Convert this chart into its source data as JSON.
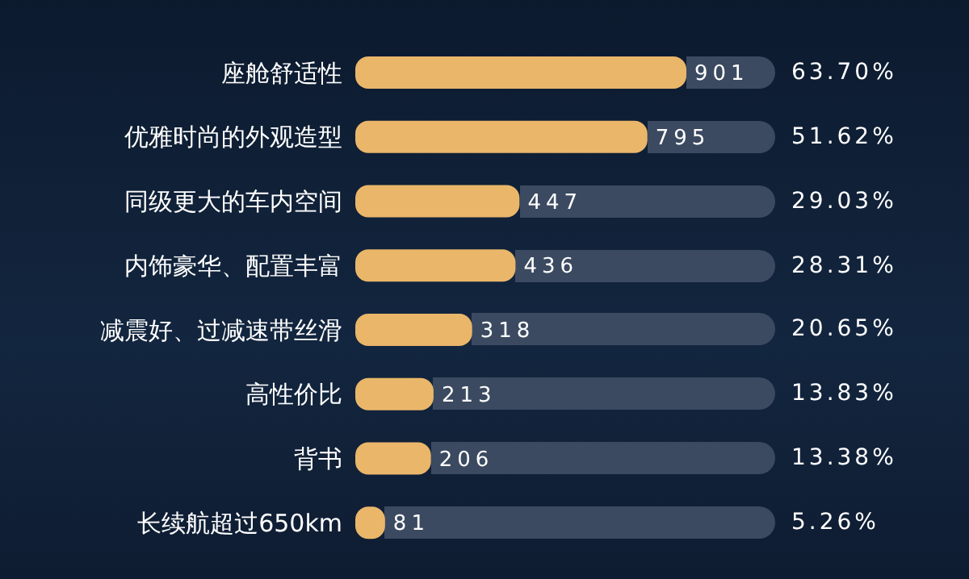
{
  "chart_data": {
    "type": "bar",
    "orientation": "horizontal",
    "categories": [
      "座舱舒适性",
      "优雅时尚的外观造型",
      "同级更大的车内空间",
      "内饰豪华、配置丰富",
      "减震好、过减速带丝滑",
      "高性价比",
      "背书",
      "长续航超过650km"
    ],
    "values": [
      901,
      795,
      447,
      436,
      318,
      213,
      206,
      81
    ],
    "color": "#eab66a",
    "data_labels": true,
    "annotations": [
      "63.70%",
      "51.62%",
      "29.03%",
      "28.31%",
      "20.65%",
      "13.83%",
      "13.38%",
      "5.26%"
    ]
  }
}
